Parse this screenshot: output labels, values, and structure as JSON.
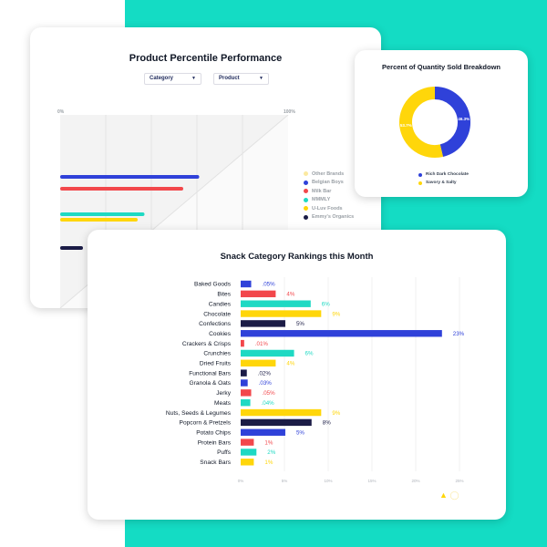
{
  "colors": {
    "teal": "#14dcc4",
    "blue": "#2f41d9",
    "red": "#f2474b",
    "teal_bar": "#1ed9c3",
    "yellow": "#ffd60a",
    "navy": "#1b1c46",
    "light_yellow": "#fbe9a0"
  },
  "percentile_card": {
    "title": "Product Percentile Performance",
    "filters": [
      {
        "label": "Category",
        "icon": "chevron-down-icon"
      },
      {
        "label": "Product",
        "icon": "chevron-down-icon"
      }
    ],
    "axis_start": "0%",
    "axis_end": "100%",
    "legend": [
      {
        "label": "Other Brands",
        "color": "#fbe9a0"
      },
      {
        "label": "Belgian Boys",
        "color": "#2f41d9"
      },
      {
        "label": "Milk Bar",
        "color": "#f2474b"
      },
      {
        "label": "MMMLY",
        "color": "#1ed9c3"
      },
      {
        "label": "U-Luv Foods",
        "color": "#ffd60a"
      },
      {
        "label": "Emmy's Organics",
        "color": "#1b1c46"
      }
    ],
    "bars": [
      {
        "brand": "Belgian Boys",
        "value": 0.61
      },
      {
        "brand": "Milk Bar",
        "value": 0.54
      },
      {
        "brand": "MMMLY",
        "value": 0.37
      },
      {
        "brand": "U-Luv Foods",
        "value": 0.34
      },
      {
        "brand": "Emmy's Organics",
        "value": 0.1
      }
    ]
  },
  "donut_card": {
    "title": "Percent of Quantity Sold Breakdown",
    "legend": [
      {
        "label": "Rich Dark Chocolate",
        "color": "#2f41d9"
      },
      {
        "label": "Savory & Salty",
        "color": "#ffd60a"
      }
    ],
    "chart_data": {
      "type": "pie",
      "labels": [
        "Rich Dark Chocolate",
        "Savory & Salty"
      ],
      "values": [
        46.3,
        53.7
      ],
      "data_labels": [
        "46.3%",
        "53.7%"
      ]
    }
  },
  "snack_card": {
    "title": "Snack Category Rankings this Month",
    "chart_data": {
      "type": "bar",
      "orientation": "horizontal",
      "categories": [
        "Baked Goods",
        "Bites",
        "Candies",
        "Chocolate",
        "Confections",
        "Cookies",
        "Crackers & Crisps",
        "Crunchies",
        "Dried Fruits",
        "Functional Bars",
        "Granola & Oats",
        "Jerky",
        "Meats",
        "Nuts, Seeds & Legumes",
        "Popcorn & Pretzels",
        "Potato Chips",
        "Protein Bars",
        "Puffs",
        "Snack Bars"
      ],
      "values": [
        0.05,
        4,
        6,
        9,
        5,
        23,
        0.01,
        6,
        4,
        0.02,
        0.03,
        0.05,
        0.04,
        9,
        8,
        5,
        1,
        2,
        1
      ],
      "bar_lengths": [
        1.2,
        4,
        8,
        9.2,
        5.1,
        23,
        0.4,
        6.1,
        4,
        0.7,
        0.8,
        1.2,
        1.1,
        9.2,
        8.1,
        5.1,
        1.5,
        1.8,
        1.5
      ],
      "data_labels": [
        ".05%",
        "4%",
        "6%",
        "9%",
        "5%",
        "23%",
        ".01%",
        "6%",
        "4%",
        ".02%",
        ".03%",
        ".05%",
        ".04%",
        "9%",
        "8%",
        "5%",
        "1%",
        "2%",
        "1%"
      ],
      "bar_colors": [
        "#2f41d9",
        "#f2474b",
        "#1ed9c3",
        "#ffd60a",
        "#1b1c46",
        "#2f41d9",
        "#f2474b",
        "#1ed9c3",
        "#ffd60a",
        "#1b1c46",
        "#2f41d9",
        "#f2474b",
        "#1ed9c3",
        "#ffd60a",
        "#1b1c46",
        "#2f41d9",
        "#f2474b",
        "#1ed9c3",
        "#ffd60a"
      ],
      "x_ticks": [
        "0%",
        "5%",
        "10%",
        "15%",
        "20%",
        "25%"
      ],
      "xlim": [
        0,
        25
      ],
      "grid": true
    },
    "footer_icons": [
      "warning-icon",
      "lightbulb-icon"
    ]
  }
}
